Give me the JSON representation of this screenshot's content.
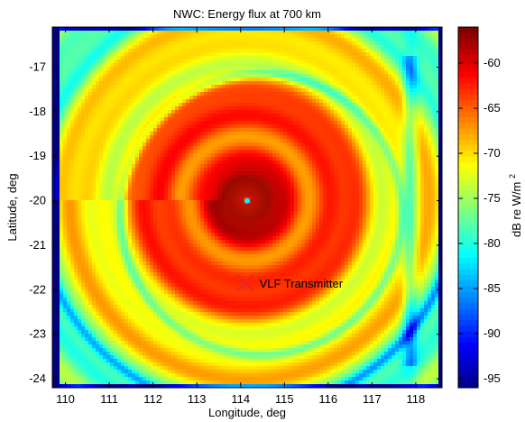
{
  "chart_data": {
    "type": "heatmap",
    "title": "NWC: Energy flux at 700 km",
    "xlabel": "Longitude, deg",
    "ylabel": "Latitude, deg",
    "xlim": [
      109.7,
      118.6
    ],
    "ylim": [
      -24.2,
      -16.1
    ],
    "xticks": [
      110,
      111,
      112,
      113,
      114,
      115,
      116,
      117,
      118
    ],
    "yticks": [
      -17,
      -18,
      -19,
      -20,
      -21,
      -22,
      -23,
      -24
    ],
    "colorbar": {
      "label": "dB re W/m",
      "label_superscript": "2",
      "range": [
        -96,
        -56
      ],
      "ticks": [
        -60,
        -65,
        -70,
        -75,
        -80,
        -85,
        -90,
        -95
      ],
      "colormap": "jet"
    },
    "peak": {
      "lon": 114.15,
      "lat": -20.0,
      "value": -58
    },
    "transmitter": {
      "lon": 114.1,
      "lat": -21.85,
      "label": "VLF Transmitter",
      "marker": "x",
      "color": "#e8262a"
    },
    "grid": false
  }
}
